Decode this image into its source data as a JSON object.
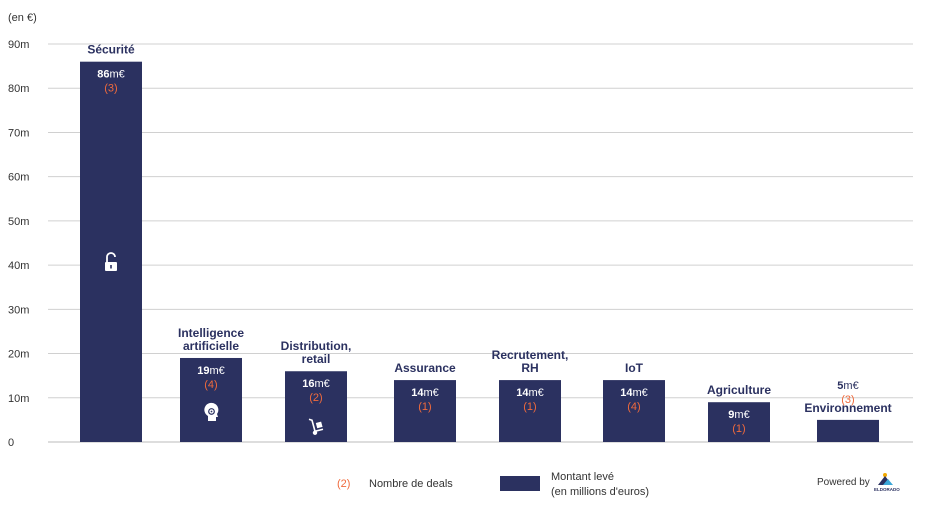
{
  "chart_data": {
    "type": "bar",
    "unit_label": "(en €)",
    "ylim": [
      0,
      90
    ],
    "yticks": [
      "0",
      "10m",
      "20m",
      "30m",
      "40m",
      "50m",
      "60m",
      "70m",
      "80m",
      "90m"
    ],
    "grid": true,
    "bar_color": "#2b3160",
    "deal_color": "#f06a3c",
    "categories": [
      {
        "label": [
          "Sécurité"
        ],
        "value": 86,
        "value_label": "86",
        "unit": "m€",
        "deals": "(3)",
        "icon": "unlocked-padlock-icon"
      },
      {
        "label": [
          "Intelligence",
          "artificielle"
        ],
        "value": 19,
        "value_label": "19",
        "unit": "m€",
        "deals": "(4)",
        "icon": "brain-head-icon"
      },
      {
        "label": [
          "Distribution,",
          "retail"
        ],
        "value": 16,
        "value_label": "16",
        "unit": "m€",
        "deals": "(2)",
        "icon": "hand-truck-icon"
      },
      {
        "label": [
          "Assurance"
        ],
        "value": 14,
        "value_label": "14",
        "unit": "m€",
        "deals": "(1)",
        "icon": ""
      },
      {
        "label": [
          "Recrutement,",
          "RH"
        ],
        "value": 14,
        "value_label": "14",
        "unit": "m€",
        "deals": "(1)",
        "icon": ""
      },
      {
        "label": [
          "IoT"
        ],
        "value": 14,
        "value_label": "14",
        "unit": "m€",
        "deals": "(4)",
        "icon": ""
      },
      {
        "label": [
          "Agriculture"
        ],
        "value": 9,
        "value_label": "9",
        "unit": "m€",
        "deals": "(1)",
        "icon": ""
      },
      {
        "label": [
          "Environnement"
        ],
        "value": 5,
        "value_label": "5",
        "unit": "m€",
        "deals": "(3)",
        "icon": ""
      }
    ],
    "legend": {
      "deals_sample": "(2)",
      "deals_label": "Nombre de deals",
      "amount_label_lines": [
        "Montant levé",
        "(en millions d'euros)"
      ]
    }
  },
  "footer": {
    "powered_by": "Powered by",
    "brand": "ELDORADO",
    "brand_icon": "eldorado-mountain-logo-icon"
  }
}
